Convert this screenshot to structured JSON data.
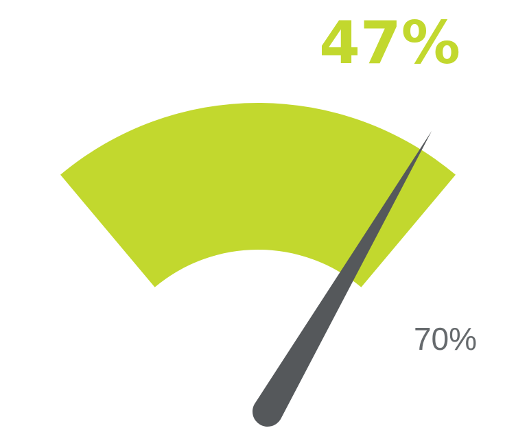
{
  "chart_data": {
    "type": "gauge",
    "value": 47,
    "value_label": "47%",
    "max_label": "70%",
    "range": [
      0,
      70
    ],
    "colors": {
      "band": "#c2d82e",
      "value_text": "#c2d82e",
      "needle": "#55585b",
      "max_text": "#666a6d"
    }
  }
}
